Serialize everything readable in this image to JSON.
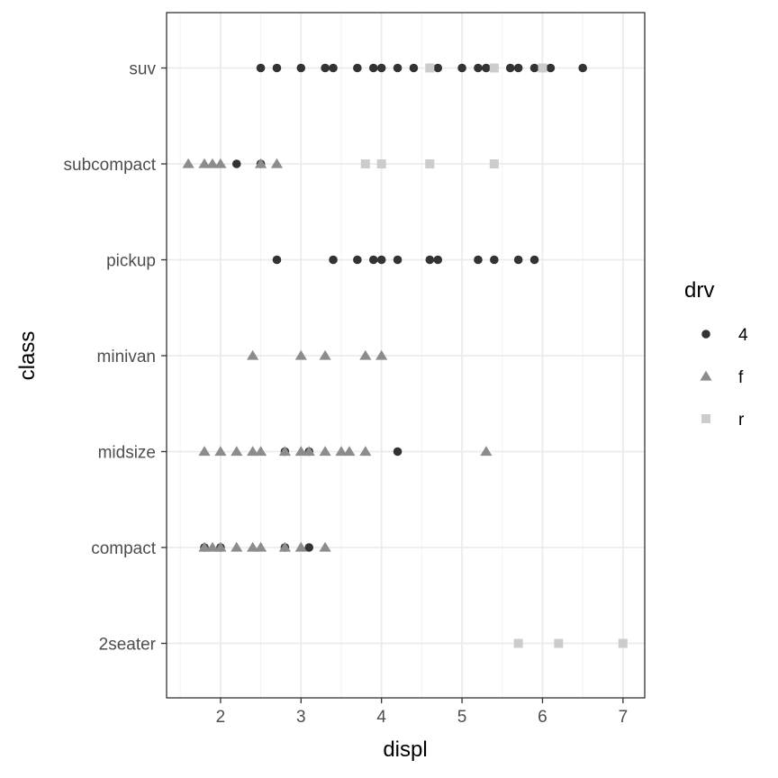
{
  "chart_data": {
    "type": "scatter",
    "xlabel": "displ",
    "ylabel": "class",
    "xlim": [
      1.33,
      7.27
    ],
    "x_ticks": [
      "2",
      "3",
      "4",
      "5",
      "6",
      "7"
    ],
    "categories": [
      "2seater",
      "compact",
      "midsize",
      "minivan",
      "pickup",
      "subcompact",
      "suv"
    ],
    "grid": true,
    "legend": {
      "title": "drv",
      "position": "right",
      "entries": [
        "4",
        "f",
        "r"
      ]
    },
    "colors": {
      "4": "#333333",
      "f": "#8c8c8c",
      "r": "#cccccc"
    },
    "series": [
      {
        "name": "4",
        "marker": "circle",
        "points": [
          [
            "suv",
            2.5
          ],
          [
            "suv",
            2.7
          ],
          [
            "suv",
            3.0
          ],
          [
            "suv",
            3.3
          ],
          [
            "suv",
            3.4
          ],
          [
            "suv",
            3.7
          ],
          [
            "suv",
            3.9
          ],
          [
            "suv",
            4.0
          ],
          [
            "suv",
            4.2
          ],
          [
            "suv",
            4.4
          ],
          [
            "suv",
            4.6
          ],
          [
            "suv",
            4.7
          ],
          [
            "suv",
            5.0
          ],
          [
            "suv",
            5.2
          ],
          [
            "suv",
            5.3
          ],
          [
            "suv",
            5.6
          ],
          [
            "suv",
            5.7
          ],
          [
            "suv",
            5.9
          ],
          [
            "suv",
            6.1
          ],
          [
            "suv",
            6.5
          ],
          [
            "subcompact",
            2.2
          ],
          [
            "subcompact",
            2.5
          ],
          [
            "pickup",
            2.7
          ],
          [
            "pickup",
            3.4
          ],
          [
            "pickup",
            3.7
          ],
          [
            "pickup",
            3.9
          ],
          [
            "pickup",
            4.0
          ],
          [
            "pickup",
            4.2
          ],
          [
            "pickup",
            4.6
          ],
          [
            "pickup",
            4.7
          ],
          [
            "pickup",
            5.2
          ],
          [
            "pickup",
            5.4
          ],
          [
            "pickup",
            5.7
          ],
          [
            "pickup",
            5.9
          ],
          [
            "midsize",
            2.8
          ],
          [
            "midsize",
            3.1
          ],
          [
            "midsize",
            4.2
          ],
          [
            "compact",
            1.8
          ],
          [
            "compact",
            2.0
          ],
          [
            "compact",
            2.8
          ],
          [
            "compact",
            3.1
          ]
        ]
      },
      {
        "name": "f",
        "marker": "triangle",
        "points": [
          [
            "subcompact",
            1.6
          ],
          [
            "subcompact",
            1.8
          ],
          [
            "subcompact",
            1.9
          ],
          [
            "subcompact",
            2.0
          ],
          [
            "subcompact",
            2.5
          ],
          [
            "subcompact",
            2.7
          ],
          [
            "minivan",
            2.4
          ],
          [
            "minivan",
            3.0
          ],
          [
            "minivan",
            3.3
          ],
          [
            "minivan",
            3.8
          ],
          [
            "minivan",
            4.0
          ],
          [
            "midsize",
            1.8
          ],
          [
            "midsize",
            2.0
          ],
          [
            "midsize",
            2.2
          ],
          [
            "midsize",
            2.4
          ],
          [
            "midsize",
            2.5
          ],
          [
            "midsize",
            2.8
          ],
          [
            "midsize",
            3.0
          ],
          [
            "midsize",
            3.1
          ],
          [
            "midsize",
            3.3
          ],
          [
            "midsize",
            3.5
          ],
          [
            "midsize",
            3.6
          ],
          [
            "midsize",
            3.8
          ],
          [
            "midsize",
            5.3
          ],
          [
            "compact",
            1.8
          ],
          [
            "compact",
            1.9
          ],
          [
            "compact",
            2.0
          ],
          [
            "compact",
            2.2
          ],
          [
            "compact",
            2.4
          ],
          [
            "compact",
            2.5
          ],
          [
            "compact",
            2.8
          ],
          [
            "compact",
            3.0
          ],
          [
            "compact",
            3.3
          ]
        ]
      },
      {
        "name": "r",
        "marker": "square",
        "points": [
          [
            "suv",
            4.6
          ],
          [
            "suv",
            5.4
          ],
          [
            "suv",
            6.0
          ],
          [
            "subcompact",
            3.8
          ],
          [
            "subcompact",
            4.0
          ],
          [
            "subcompact",
            4.6
          ],
          [
            "subcompact",
            5.4
          ],
          [
            "2seater",
            5.7
          ],
          [
            "2seater",
            6.2
          ],
          [
            "2seater",
            7.0
          ]
        ]
      }
    ]
  }
}
